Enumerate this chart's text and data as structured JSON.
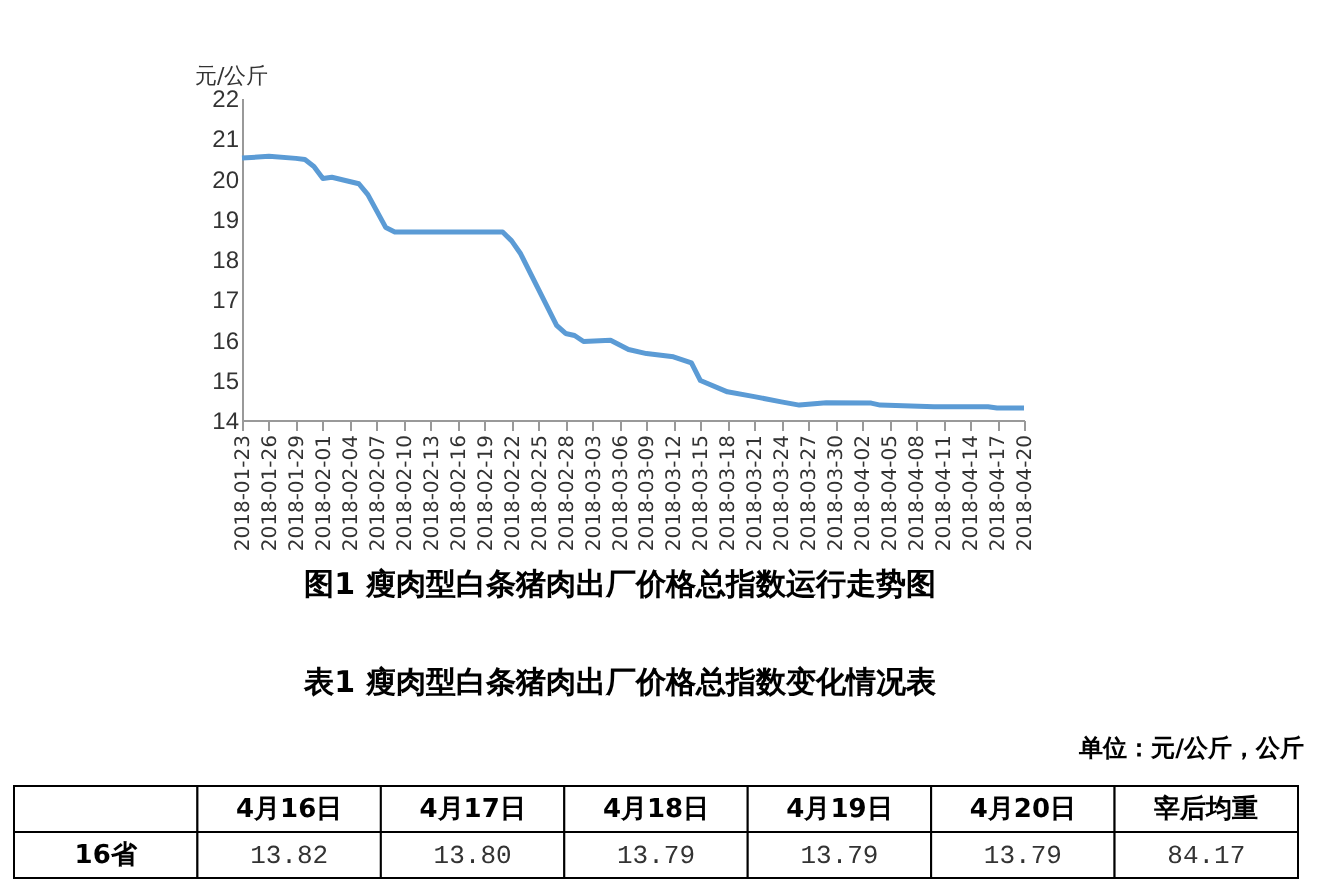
{
  "chart_data": [
    {
      "type": "line",
      "title": "图1 瘦肉型白条猪肉出厂价格总指数运行走势图",
      "ylabel": "元/公斤",
      "x": [
        "2018-01-23",
        "2018-01-26",
        "2018-01-29",
        "2018-01-30",
        "2018-01-31",
        "2018-02-01",
        "2018-02-02",
        "2018-02-05",
        "2018-02-06",
        "2018-02-08",
        "2018-02-09",
        "2018-02-21",
        "2018-02-22",
        "2018-02-23",
        "2018-02-27",
        "2018-02-28",
        "2018-03-01",
        "2018-03-02",
        "2018-03-05",
        "2018-03-07",
        "2018-03-09",
        "2018-03-12",
        "2018-03-14",
        "2018-03-15",
        "2018-03-18",
        "2018-03-21",
        "2018-03-24",
        "2018-03-26",
        "2018-03-29",
        "2018-04-03",
        "2018-04-04",
        "2018-04-10",
        "2018-04-16",
        "2018-04-17",
        "2018-04-20"
      ],
      "series": [
        {
          "color": "#5b9bd5",
          "values": [
            20.51,
            20.55,
            20.5,
            20.47,
            20.3,
            20.0,
            20.03,
            19.87,
            19.6,
            18.78,
            18.67,
            18.67,
            18.45,
            18.13,
            16.35,
            16.15,
            16.1,
            15.95,
            15.98,
            15.75,
            15.65,
            15.57,
            15.42,
            14.98,
            14.7,
            14.58,
            14.45,
            14.37,
            14.43,
            14.42,
            14.37,
            14.33,
            14.33,
            14.3,
            14.3
          ]
        }
      ],
      "xlim": [
        "2018-01-23",
        "2018-04-20"
      ],
      "xticks": [
        "2018-01-23",
        "2018-01-26",
        "2018-01-29",
        "2018-02-01",
        "2018-02-04",
        "2018-02-07",
        "2018-02-10",
        "2018-02-13",
        "2018-02-16",
        "2018-02-19",
        "2018-02-22",
        "2018-02-25",
        "2018-02-28",
        "2018-03-03",
        "2018-03-06",
        "2018-03-09",
        "2018-03-12",
        "2018-03-15",
        "2018-03-18",
        "2018-03-21",
        "2018-03-24",
        "2018-03-27",
        "2018-03-30",
        "2018-04-02",
        "2018-04-05",
        "2018-04-08",
        "2018-04-11",
        "2018-04-14",
        "2018-04-17",
        "2018-04-20"
      ],
      "ylim": [
        14,
        22
      ],
      "yticks": [
        14,
        15,
        16,
        17,
        18,
        19,
        20,
        21,
        22
      ],
      "grid": false,
      "legend": false,
      "marker": "none",
      "line_style": "solid"
    },
    {
      "type": "other",
      "title": "表1 瘦肉型白条猪肉出厂价格总指数变化情况表",
      "subtitle": "单位：元/公斤，公斤",
      "categories": [
        "4月16日",
        "4月17日",
        "4月18日",
        "4月19日",
        "4月20日",
        "宰后均重"
      ],
      "ylabel": "16省",
      "values": [
        13.82,
        13.8,
        13.79,
        13.79,
        13.79,
        84.17
      ],
      "value_labels": [
        "13.82",
        "13.80",
        "13.79",
        "13.79",
        "13.79",
        "84.17"
      ]
    }
  ]
}
